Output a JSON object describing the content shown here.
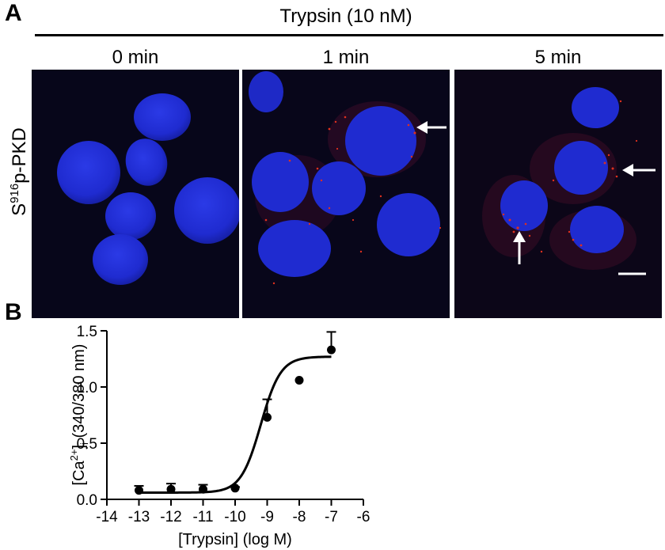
{
  "panel_a": {
    "letter": "A",
    "treatment": "Trypsin (10 nM)",
    "row_label": {
      "prefix": "S",
      "superscript": "916",
      "suffix": "p-PKD"
    },
    "time_labels": [
      "0 min",
      "1 min",
      "5 min"
    ],
    "colors": {
      "nucleus": "#1f2bd8",
      "background": "#08061a",
      "punctate": "#e0301e",
      "arrow": "#ffffff"
    }
  },
  "panel_b": {
    "letter": "B",
    "ylabel_main": "[Ca",
    "ylabel_sup": "2+",
    "ylabel_close": "]",
    "ylabel_sub": "i",
    "ylabel_rest": " (340/380 nm)",
    "xlabel": "[Trypsin] (log M)",
    "x_ticks": [
      "-14",
      "-13",
      "-12",
      "-11",
      "-10",
      "-9",
      "-8",
      "-7",
      "-6"
    ],
    "y_ticks": [
      "0.0",
      "0.5",
      "1.0",
      "1.5"
    ]
  },
  "chart_data": {
    "type": "scatter",
    "x": [
      -13,
      -12,
      -11,
      -10,
      -9,
      -8,
      -7
    ],
    "values": [
      0.08,
      0.09,
      0.09,
      0.1,
      0.73,
      1.06,
      1.33
    ],
    "error_upper": [
      0.04,
      0.05,
      0.04,
      0.01,
      0.16,
      0.0,
      0.16
    ],
    "fit": {
      "model": "sigmoidal",
      "bottom": 0.06,
      "top": 1.27,
      "log_ec50": -9.2,
      "hill": 1.4
    },
    "xlim": [
      -14,
      -6
    ],
    "ylim": [
      0,
      1.5
    ],
    "xlabel": "[Trypsin] (log M)",
    "ylabel": "[Ca2+]i (340/380 nm)"
  }
}
